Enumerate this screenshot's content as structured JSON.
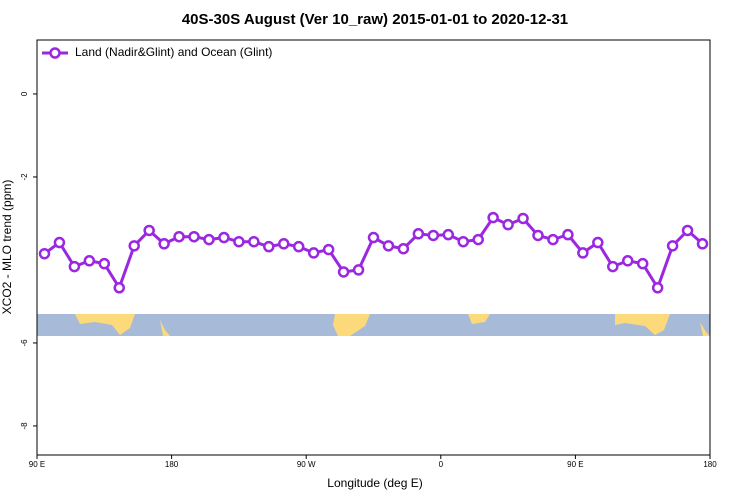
{
  "chart_data": {
    "type": "line",
    "title": "40S-30S August (Ver 10_raw)   2015-01-01 to 2020-12-31",
    "x_label": "Longitude (deg E)",
    "y_label": "XCO2 - MLO trend (ppm)",
    "x": [
      95,
      105,
      115,
      125,
      135,
      145,
      155,
      165,
      175,
      185,
      195,
      205,
      215,
      225,
      235,
      245,
      255,
      265,
      275,
      285,
      295,
      305,
      315,
      325,
      335,
      345,
      355,
      365,
      375,
      385,
      395,
      405,
      415,
      425,
      435,
      445,
      455,
      465,
      475,
      485,
      495,
      505,
      515,
      525,
      535
    ],
    "series": [
      {
        "name": "Land (Nadir&Glint) and Ocean (Glint)",
        "color": "#9b27e0",
        "values": [
          -3.85,
          -3.58,
          -4.16,
          -4.02,
          -4.09,
          -4.67,
          -3.66,
          -3.29,
          -3.61,
          -3.44,
          -3.44,
          -3.51,
          -3.46,
          -3.56,
          -3.56,
          -3.68,
          -3.61,
          -3.68,
          -3.83,
          -3.75,
          -4.29,
          -4.24,
          -3.46,
          -3.66,
          -3.73,
          -3.37,
          -3.41,
          -3.39,
          -3.56,
          -3.51,
          -2.98,
          -3.15,
          -3.0,
          -3.41,
          -3.51,
          -3.39,
          -3.83,
          -3.58,
          -4.16,
          -4.02,
          -4.09,
          -4.67,
          -3.66,
          -3.29,
          -3.61
        ]
      }
    ],
    "xlim": [
      90,
      540
    ],
    "xticks": [
      {
        "value": 90,
        "label": "90 E"
      },
      {
        "value": 180,
        "label": "180"
      },
      {
        "value": 270,
        "label": "90 W"
      },
      {
        "value": 360,
        "label": "0"
      },
      {
        "value": 450,
        "label": "90 E"
      },
      {
        "value": 540,
        "label": "180"
      }
    ],
    "ylim": [
      -8.7,
      1.3
    ],
    "yticks": [
      0,
      -2,
      -6,
      -8
    ],
    "legend": "top-left"
  }
}
